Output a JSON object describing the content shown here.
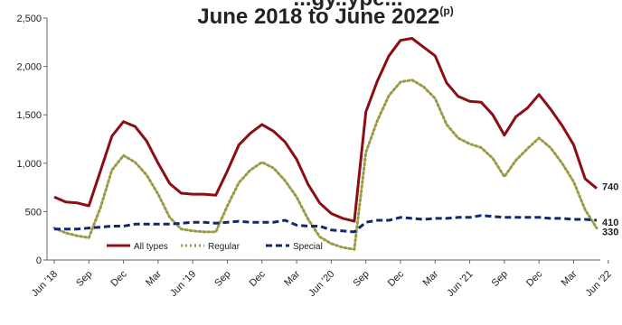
{
  "chart_data": {
    "type": "line",
    "title": "June 2018 to June 2022",
    "title_superscript": "(p)",
    "title_partial_top": "...gy..ype...",
    "x_labels": [
      "Jun '18",
      "Sep",
      "Dec",
      "Mar",
      "Jun '19",
      "Sep",
      "Dec",
      "Mar",
      "Jun '20",
      "Sep",
      "Dec",
      "Mar",
      "Jun '21",
      "Sep",
      "Dec",
      "Mar",
      "Jun '22"
    ],
    "ylim": [
      0,
      2500
    ],
    "yticks": [
      "0",
      "500",
      "1,000",
      "1,500",
      "2,000",
      "2,500"
    ],
    "grid": false,
    "legend_position": "bottom-left",
    "series": [
      {
        "name": "All types",
        "color": "#8b0e14",
        "style": "solid",
        "values": [
          650,
          600,
          590,
          560,
          920,
          1280,
          1430,
          1380,
          1230,
          1000,
          790,
          690,
          680,
          680,
          670,
          920,
          1190,
          1310,
          1400,
          1330,
          1220,
          1040,
          780,
          590,
          480,
          430,
          400,
          1530,
          1850,
          2110,
          2270,
          2290,
          2200,
          2110,
          1830,
          1690,
          1640,
          1630,
          1500,
          1290,
          1480,
          1570,
          1710,
          1560,
          1390,
          1190,
          840,
          740
        ]
      },
      {
        "name": "Regular",
        "color": "#9b9a45",
        "style": "dotted",
        "values": [
          330,
          280,
          250,
          230,
          540,
          930,
          1080,
          1010,
          880,
          680,
          440,
          320,
          300,
          290,
          290,
          560,
          800,
          930,
          1010,
          950,
          820,
          650,
          420,
          240,
          170,
          130,
          110,
          1110,
          1440,
          1700,
          1840,
          1860,
          1790,
          1670,
          1400,
          1260,
          1200,
          1160,
          1050,
          860,
          1030,
          1150,
          1260,
          1160,
          1000,
          810,
          520,
          330
        ]
      },
      {
        "name": "Special",
        "color": "#12286e",
        "style": "dashed",
        "values": [
          320,
          320,
          320,
          330,
          340,
          350,
          350,
          370,
          370,
          370,
          370,
          380,
          390,
          390,
          380,
          390,
          400,
          390,
          390,
          390,
          410,
          360,
          350,
          350,
          310,
          300,
          290,
          390,
          410,
          410,
          440,
          430,
          420,
          430,
          430,
          440,
          440,
          460,
          450,
          440,
          440,
          440,
          440,
          430,
          430,
          420,
          420,
          410
        ]
      }
    ],
    "end_labels": [
      "740",
      "410",
      "330"
    ]
  }
}
